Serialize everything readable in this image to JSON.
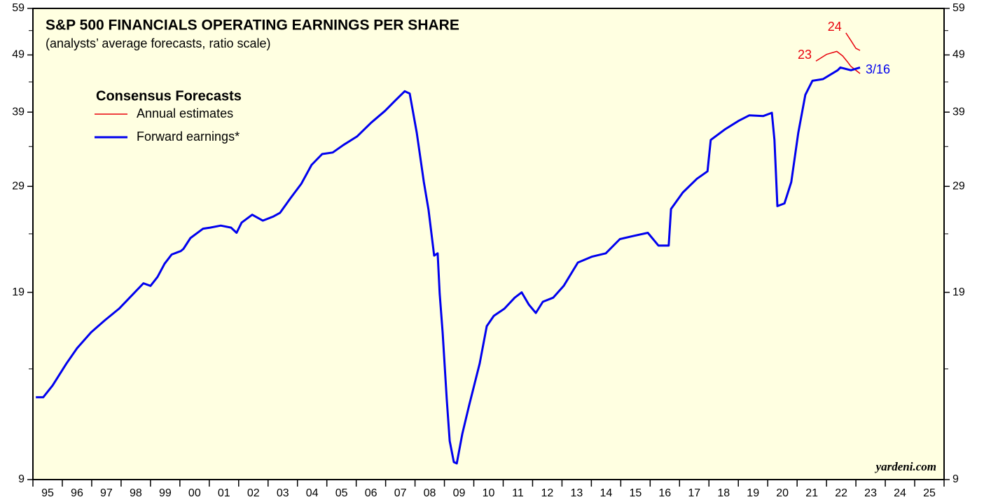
{
  "chart_data": {
    "type": "line",
    "title": "S&P 500 FINANCIALS OPERATING EARNINGS PER SHARE",
    "subtitle": "(analysts’ average forecasts, ratio scale)",
    "legend_title": "Consensus Forecasts",
    "source": "yardeni.com",
    "log_scale": true,
    "xlim": [
      1995,
      2026
    ],
    "xticks": [
      1995,
      1996,
      1997,
      1998,
      1999,
      2000,
      2001,
      2002,
      2003,
      2004,
      2005,
      2006,
      2007,
      2008,
      2009,
      2010,
      2011,
      2012,
      2013,
      2014,
      2015,
      2016,
      2017,
      2018,
      2019,
      2020,
      2021,
      2022,
      2023,
      2024,
      2025,
      2026
    ],
    "xlabels": [
      {
        "value": 1995.5,
        "label": "95"
      },
      {
        "value": 1996.5,
        "label": "96"
      },
      {
        "value": 1997.5,
        "label": "97"
      },
      {
        "value": 1998.5,
        "label": "98"
      },
      {
        "value": 1999.5,
        "label": "99"
      },
      {
        "value": 2000.5,
        "label": "00"
      },
      {
        "value": 2001.5,
        "label": "01"
      },
      {
        "value": 2002.5,
        "label": "02"
      },
      {
        "value": 2003.5,
        "label": "03"
      },
      {
        "value": 2004.5,
        "label": "04"
      },
      {
        "value": 2005.5,
        "label": "05"
      },
      {
        "value": 2006.5,
        "label": "06"
      },
      {
        "value": 2007.5,
        "label": "07"
      },
      {
        "value": 2008.5,
        "label": "08"
      },
      {
        "value": 2009.5,
        "label": "09"
      },
      {
        "value": 2010.5,
        "label": "10"
      },
      {
        "value": 2011.5,
        "label": "11"
      },
      {
        "value": 2012.5,
        "label": "12"
      },
      {
        "value": 2013.5,
        "label": "13"
      },
      {
        "value": 2014.5,
        "label": "14"
      },
      {
        "value": 2015.5,
        "label": "15"
      },
      {
        "value": 2016.5,
        "label": "16"
      },
      {
        "value": 2017.5,
        "label": "17"
      },
      {
        "value": 2018.5,
        "label": "18"
      },
      {
        "value": 2019.5,
        "label": "19"
      },
      {
        "value": 2020.5,
        "label": "20"
      },
      {
        "value": 2021.5,
        "label": "21"
      },
      {
        "value": 2022.5,
        "label": "22"
      },
      {
        "value": 2023.5,
        "label": "23"
      },
      {
        "value": 2024.5,
        "label": "24"
      },
      {
        "value": 2025.5,
        "label": "25"
      }
    ],
    "ylim": [
      9,
      59
    ],
    "yticks": [
      9,
      19,
      29,
      39,
      49,
      59
    ],
    "yminor": [
      14,
      24,
      34,
      44,
      54
    ],
    "annotations": [
      "23",
      "24",
      "3/16"
    ],
    "series": [
      {
        "name": "Annual estimates",
        "color": "#e8000b",
        "x": [
          2021.64,
          2022.0,
          2022.35,
          2022.55,
          2022.71,
          2022.83,
          2023.14,
          null,
          2022.66,
          2022.83,
          2023.0,
          2023.14
        ],
        "values": [
          47.8,
          49.1,
          49.7,
          48.8,
          47.7,
          46.8,
          45.5,
          null,
          53.5,
          51.9,
          50.3,
          49.9
        ]
      },
      {
        "name": "Forward earnings*",
        "color": "#0000ee",
        "x": [
          1995.1,
          1995.35,
          1995.67,
          1996.14,
          1996.5,
          1996.98,
          1997.45,
          1997.93,
          1998.29,
          1998.76,
          1999.0,
          1999.24,
          1999.48,
          1999.72,
          2000.03,
          2000.12,
          2000.36,
          2000.79,
          2001.03,
          2001.39,
          2001.74,
          2001.93,
          2002.1,
          2002.46,
          2002.82,
          2003.17,
          2003.41,
          2003.77,
          2004.13,
          2004.48,
          2004.84,
          2005.2,
          2005.56,
          2006.03,
          2006.51,
          2006.98,
          2007.34,
          2007.65,
          2007.82,
          2008.06,
          2008.3,
          2008.46,
          2008.65,
          2008.77,
          2008.84,
          2008.94,
          2009.08,
          2009.18,
          2009.32,
          2009.42,
          2009.61,
          2009.84,
          2010.2,
          2010.44,
          2010.68,
          2011.04,
          2011.39,
          2011.63,
          2011.87,
          2012.11,
          2012.35,
          2012.7,
          2013.06,
          2013.54,
          2014.01,
          2014.49,
          2014.97,
          2015.44,
          2015.92,
          2016.28,
          2016.63,
          2016.71,
          2017.11,
          2017.59,
          2017.95,
          2018.06,
          2018.54,
          2019.02,
          2019.37,
          2019.85,
          2020.14,
          2020.23,
          2020.33,
          2020.57,
          2020.8,
          2021.04,
          2021.28,
          2021.52,
          2021.88,
          2022.38,
          2022.47,
          2022.83,
          2023.14
        ],
        "values": [
          12.5,
          12.5,
          13.1,
          14.3,
          15.2,
          16.2,
          17.0,
          17.8,
          18.6,
          19.7,
          19.5,
          20.2,
          21.3,
          22.1,
          22.4,
          22.6,
          23.6,
          24.5,
          24.6,
          24.8,
          24.6,
          24.1,
          25.1,
          25.9,
          25.3,
          25.7,
          26.1,
          27.7,
          29.3,
          31.6,
          33.0,
          33.2,
          34.2,
          35.4,
          37.4,
          39.2,
          40.9,
          42.4,
          42.0,
          35.9,
          29.5,
          26.4,
          22.0,
          22.2,
          18.9,
          16.2,
          12.4,
          10.5,
          9.65,
          9.6,
          10.8,
          12.1,
          14.3,
          16.6,
          17.3,
          17.8,
          18.6,
          19.0,
          18.1,
          17.5,
          18.3,
          18.6,
          19.5,
          21.4,
          21.9,
          22.2,
          23.5,
          23.8,
          24.1,
          22.9,
          22.9,
          26.5,
          28.3,
          29.9,
          30.8,
          34.9,
          36.4,
          37.7,
          38.5,
          38.4,
          38.9,
          34.9,
          26.8,
          27.1,
          29.5,
          35.9,
          41.8,
          44.2,
          44.5,
          46.1,
          46.6,
          46.1,
          46.6
        ]
      }
    ]
  }
}
